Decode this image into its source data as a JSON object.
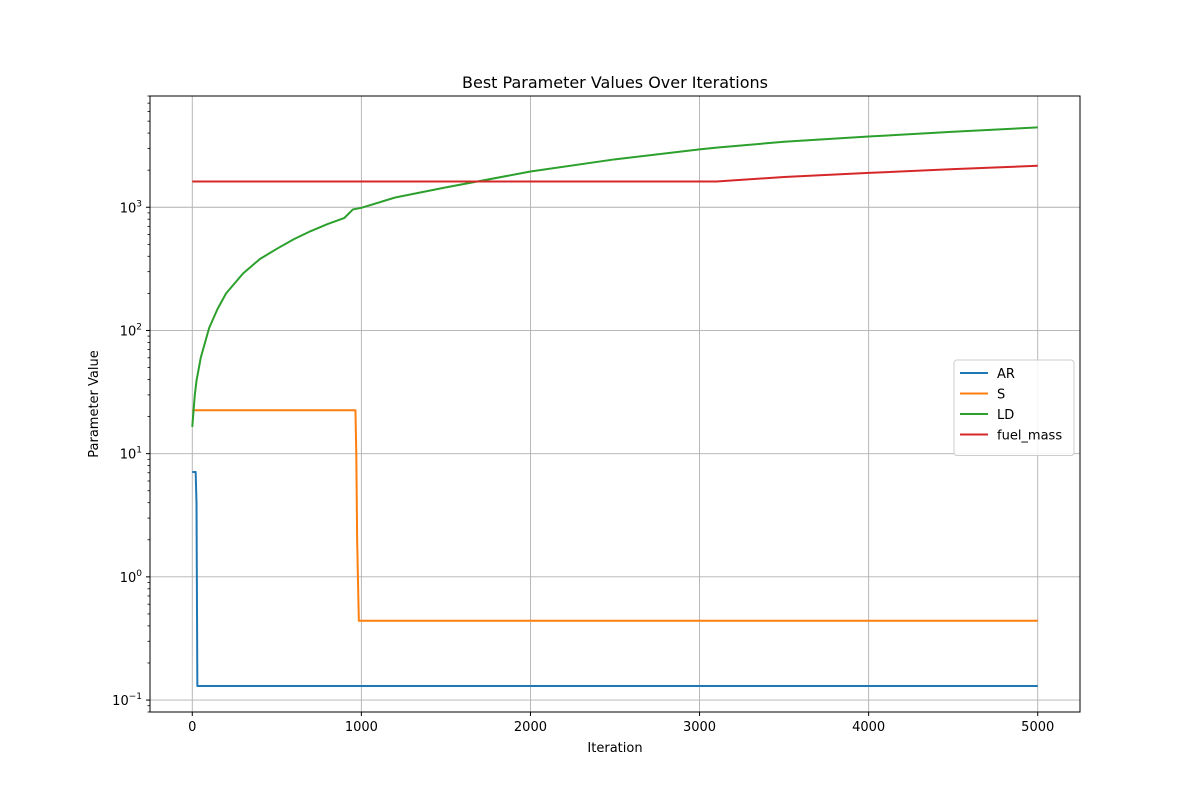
{
  "chart_data": {
    "type": "line",
    "title": "Best Parameter Values Over Iterations",
    "xlabel": "Iteration",
    "ylabel": "Parameter Value",
    "xlim": [
      -250,
      5250
    ],
    "ylim": [
      0.08,
      8000
    ],
    "yscale": "log",
    "grid": true,
    "legend_position": "center-right",
    "x_ticks": [
      0,
      1000,
      2000,
      3000,
      4000,
      5000
    ],
    "y_ticks": [
      {
        "value": 0.1,
        "base": "10",
        "exp": "−1"
      },
      {
        "value": 1,
        "base": "10",
        "exp": "0"
      },
      {
        "value": 10,
        "base": "10",
        "exp": "1"
      },
      {
        "value": 100,
        "base": "10",
        "exp": "2"
      },
      {
        "value": 1000,
        "base": "10",
        "exp": "3"
      }
    ],
    "series": [
      {
        "name": "AR",
        "color": "#1f77b4",
        "points": [
          [
            0,
            7.1
          ],
          [
            20,
            7.1
          ],
          [
            25,
            4.0
          ],
          [
            30,
            0.13
          ],
          [
            5000,
            0.13
          ]
        ]
      },
      {
        "name": "S",
        "color": "#ff7f0e",
        "points": [
          [
            0,
            22.5
          ],
          [
            965,
            22.5
          ],
          [
            970,
            10
          ],
          [
            975,
            2
          ],
          [
            985,
            0.44
          ],
          [
            5000,
            0.44
          ]
        ]
      },
      {
        "name": "LD",
        "color": "#2ca02c",
        "points": [
          [
            0,
            16.5
          ],
          [
            15,
            30
          ],
          [
            25,
            39
          ],
          [
            50,
            60
          ],
          [
            100,
            105
          ],
          [
            150,
            150
          ],
          [
            200,
            200
          ],
          [
            300,
            290
          ],
          [
            400,
            380
          ],
          [
            500,
            460
          ],
          [
            600,
            550
          ],
          [
            700,
            640
          ],
          [
            800,
            730
          ],
          [
            900,
            820
          ],
          [
            950,
            960
          ],
          [
            1000,
            990
          ],
          [
            1200,
            1200
          ],
          [
            1500,
            1450
          ],
          [
            2000,
            1950
          ],
          [
            2500,
            2450
          ],
          [
            3000,
            2950
          ],
          [
            3100,
            3050
          ],
          [
            3500,
            3400
          ],
          [
            4000,
            3750
          ],
          [
            4500,
            4100
          ],
          [
            5000,
            4450
          ]
        ]
      },
      {
        "name": "fuel_mass",
        "color": "#d62728",
        "points": [
          [
            0,
            1620
          ],
          [
            3100,
            1620
          ],
          [
            3500,
            1760
          ],
          [
            4000,
            1900
          ],
          [
            4500,
            2040
          ],
          [
            5000,
            2170
          ]
        ]
      }
    ]
  }
}
